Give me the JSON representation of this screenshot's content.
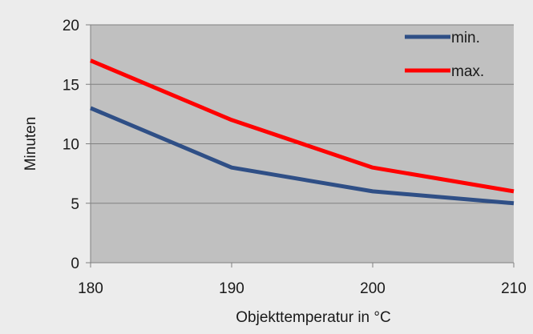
{
  "chart_data": {
    "type": "line",
    "title": "",
    "xlabel": "Objekttemperatur in °C",
    "ylabel": "Minuten",
    "x": [
      180,
      190,
      200,
      210
    ],
    "xlim": [
      180,
      210
    ],
    "ylim": [
      0,
      20
    ],
    "xticks": [
      "180",
      "190",
      "200",
      "210"
    ],
    "yticks": [
      "0",
      "5",
      "10",
      "15",
      "20"
    ],
    "grid": "horizontal",
    "legend_position": "top-right",
    "plot_background": "#c0c0c0",
    "page_background": "#ececec",
    "series": [
      {
        "name": "min.",
        "values": [
          13,
          8,
          6,
          5
        ],
        "color": "#2f4f86"
      },
      {
        "name": "max.",
        "values": [
          17,
          12,
          8,
          6
        ],
        "color": "#ff0000"
      }
    ]
  }
}
